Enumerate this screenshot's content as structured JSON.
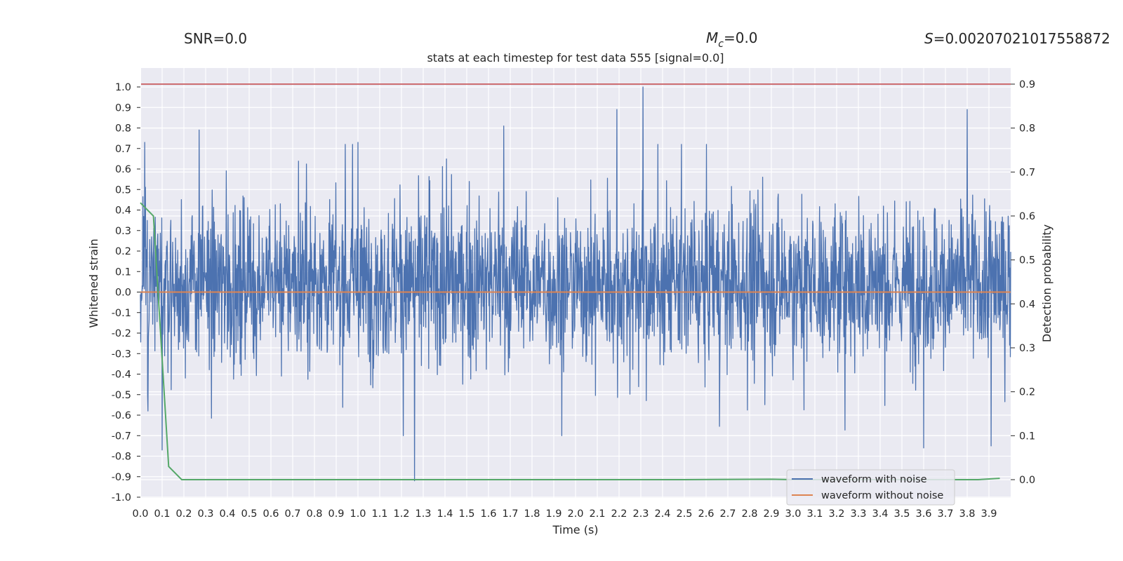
{
  "header": {
    "snr": "SNR=0.0",
    "mc_symbol": "M",
    "mc_sub": "c",
    "mc_value": "=0.0",
    "s_symbol": "S",
    "s_value": "=0.00207021017558872"
  },
  "chart_data": {
    "type": "line",
    "title": "stats at each timestep for test data 555 [signal=0.0]",
    "xlabel": "Time (s)",
    "ylabel": "Whitened strain",
    "y2label": "Detection probability",
    "xlim": [
      0.0,
      4.0
    ],
    "ylim": [
      -1.0,
      1.0
    ],
    "y2lim": [
      -0.04,
      0.94
    ],
    "x_ticks": [
      "0.0",
      "0.1",
      "0.2",
      "0.3",
      "0.4",
      "0.5",
      "0.6",
      "0.7",
      "0.8",
      "0.9",
      "1.0",
      "1.1",
      "1.2",
      "1.3",
      "1.4",
      "1.5",
      "1.6",
      "1.7",
      "1.8",
      "1.9",
      "2.0",
      "2.1",
      "2.2",
      "2.3",
      "2.4",
      "2.5",
      "2.6",
      "2.7",
      "2.8",
      "2.9",
      "3.0",
      "3.1",
      "3.2",
      "3.3",
      "3.4",
      "3.5",
      "3.6",
      "3.7",
      "3.8",
      "3.9"
    ],
    "y_ticks": [
      "1.0",
      "0.9",
      "0.8",
      "0.7",
      "0.6",
      "0.5",
      "0.4",
      "0.3",
      "0.2",
      "0.1",
      "0.0",
      "-0.1",
      "-0.2",
      "-0.3",
      "-0.4",
      "-0.5",
      "-0.6",
      "-0.7",
      "-0.8",
      "-0.9",
      "-1.0"
    ],
    "y2_ticks": [
      "0.9",
      "0.8",
      "0.7",
      "0.6",
      "0.5",
      "0.4",
      "0.3",
      "0.2",
      "0.1",
      "0.0"
    ],
    "threshold": {
      "value": 0.9,
      "color": "#c44e52"
    },
    "grid": true,
    "legend": {
      "placement": "lower-right"
    },
    "series": [
      {
        "name": "waveform with noise",
        "color": "#4c72b0",
        "axis": "left",
        "kind": "noise",
        "extremes": [
          {
            "x": 0.02,
            "y": 0.73
          },
          {
            "x": 0.1,
            "y": -0.77
          },
          {
            "x": 0.27,
            "y": 0.79
          },
          {
            "x": 1.0,
            "y": 0.73
          },
          {
            "x": 1.26,
            "y": -0.92
          },
          {
            "x": 1.67,
            "y": 0.81
          },
          {
            "x": 2.19,
            "y": 0.89
          },
          {
            "x": 2.31,
            "y": 1.0
          },
          {
            "x": 3.6,
            "y": -0.76
          },
          {
            "x": 3.8,
            "y": 0.89
          },
          {
            "x": 3.91,
            "y": -0.75
          }
        ]
      },
      {
        "name": "waveform without noise",
        "color": "#dd8452",
        "axis": "left",
        "x": [
          0.0,
          4.0
        ],
        "y": [
          0.0,
          0.0
        ]
      },
      {
        "name": "",
        "color": "#55a868",
        "axis": "right",
        "x": [
          0.0,
          0.06,
          0.13,
          0.19,
          0.5,
          1.0,
          1.5,
          2.0,
          2.5,
          2.9,
          3.0,
          3.5,
          3.85,
          3.95
        ],
        "y": [
          0.63,
          0.6,
          0.03,
          0.0,
          0.0,
          0.0,
          0.0,
          0.0,
          0.0,
          0.001,
          0.0,
          0.0,
          0.0,
          0.003
        ]
      }
    ]
  }
}
